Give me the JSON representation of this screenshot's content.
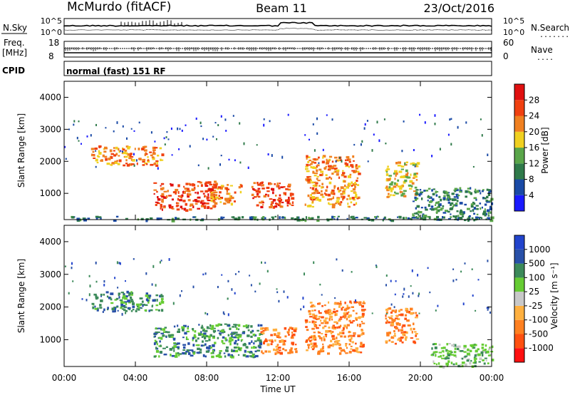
{
  "header": {
    "station": "McMurdo (fitACF)",
    "beam": "Beam 11",
    "date": "23/Oct/2016"
  },
  "noise_panel": {
    "left_label": "N.Sky",
    "right_label": "N.Search",
    "right_marker": "........",
    "left_ticks": [
      "10^5",
      "10^0"
    ],
    "right_ticks": [
      "10^5",
      "10^0"
    ]
  },
  "freq_panel": {
    "left_label_1": "Freq.",
    "left_label_2": "[MHz]",
    "left_ticks": [
      "18",
      "8"
    ],
    "right_ticks": [
      "60",
      "0"
    ],
    "right_label": "Nave",
    "right_marker": "....",
    "cpid_label": "CPID",
    "cpid_text": "normal (fast) 151 RF"
  },
  "colors": {
    "power": [
      "#1a1aff",
      "#1a4aa6",
      "#2f7a4a",
      "#5aa64a",
      "#f0d020",
      "#f08020",
      "#f04010",
      "#e01010"
    ],
    "velocity": [
      "#ff1010",
      "#ff5010",
      "#ff8020",
      "#ffb040",
      "#c8c8c8",
      "#66cc33",
      "#3c8a5a",
      "#2850a8",
      "#2244cc"
    ]
  },
  "chart_data": [
    {
      "type": "heatmap",
      "name": "power",
      "xlabel": "",
      "ylabel": "Slant Range [km]",
      "xlim": [
        0,
        24
      ],
      "ylim": [
        180,
        4500
      ],
      "y_ticks": [
        "1000",
        "2000",
        "3000",
        "4000"
      ],
      "colorbar_label": "Power [dB]",
      "colorbar_ticks": [
        "4",
        "8",
        "12",
        "16",
        "20",
        "24",
        "28"
      ],
      "regions": [
        {
          "x": [
            0.0,
            24.0
          ],
          "y": [
            180,
            300
          ],
          "level": 2,
          "note": "ground-scatter band near bottom"
        },
        {
          "x": [
            1.5,
            5.5
          ],
          "y": [
            1900,
            2500
          ],
          "level": 5
        },
        {
          "x": [
            5.0,
            8.5
          ],
          "y": [
            500,
            1400
          ],
          "level": 6
        },
        {
          "x": [
            8.2,
            10.0
          ],
          "y": [
            700,
            1300
          ],
          "level": 5
        },
        {
          "x": [
            10.5,
            12.8
          ],
          "y": [
            600,
            1400
          ],
          "level": 6
        },
        {
          "x": [
            13.5,
            16.5
          ],
          "y": [
            600,
            2200
          ],
          "level": 5
        },
        {
          "x": [
            18.0,
            19.8
          ],
          "y": [
            900,
            2000
          ],
          "level": 4
        },
        {
          "x": [
            19.5,
            24.0
          ],
          "y": [
            200,
            1200
          ],
          "level": 2
        },
        {
          "x": [
            0.0,
            24.0
          ],
          "y": [
            1800,
            3500
          ],
          "level": 1,
          "note": "sparse weak echoes"
        }
      ]
    },
    {
      "type": "heatmap",
      "name": "velocity",
      "xlabel": "Time UT",
      "ylabel": "Slant Range [km]",
      "xlim": [
        0,
        24
      ],
      "x_ticks": [
        "00:00",
        "04:00",
        "08:00",
        "12:00",
        "16:00",
        "20:00",
        "00:00"
      ],
      "ylim": [
        180,
        4500
      ],
      "y_ticks": [
        "1000",
        "2000",
        "3000",
        "4000"
      ],
      "colorbar_label": "Velocity [m s⁻¹]",
      "colorbar_ticks": [
        "1000",
        "500",
        "100",
        "25",
        "-25",
        "-100",
        "-500",
        "-1000"
      ],
      "regions": [
        {
          "x": [
            1.5,
            5.5
          ],
          "y": [
            1900,
            2500
          ],
          "level": 6
        },
        {
          "x": [
            5.0,
            11.0
          ],
          "y": [
            500,
            1500
          ],
          "level": 6
        },
        {
          "x": [
            11.0,
            13.0
          ],
          "y": [
            600,
            1400
          ],
          "level": 2
        },
        {
          "x": [
            13.5,
            16.8
          ],
          "y": [
            600,
            2200
          ],
          "level": 2
        },
        {
          "x": [
            18.0,
            19.8
          ],
          "y": [
            900,
            2000
          ],
          "level": 2
        },
        {
          "x": [
            20.5,
            24.0
          ],
          "y": [
            200,
            900
          ],
          "level": 5
        },
        {
          "x": [
            0.0,
            24.0
          ],
          "y": [
            1800,
            3500
          ],
          "level": 7,
          "note": "sparse echoes"
        }
      ]
    }
  ]
}
